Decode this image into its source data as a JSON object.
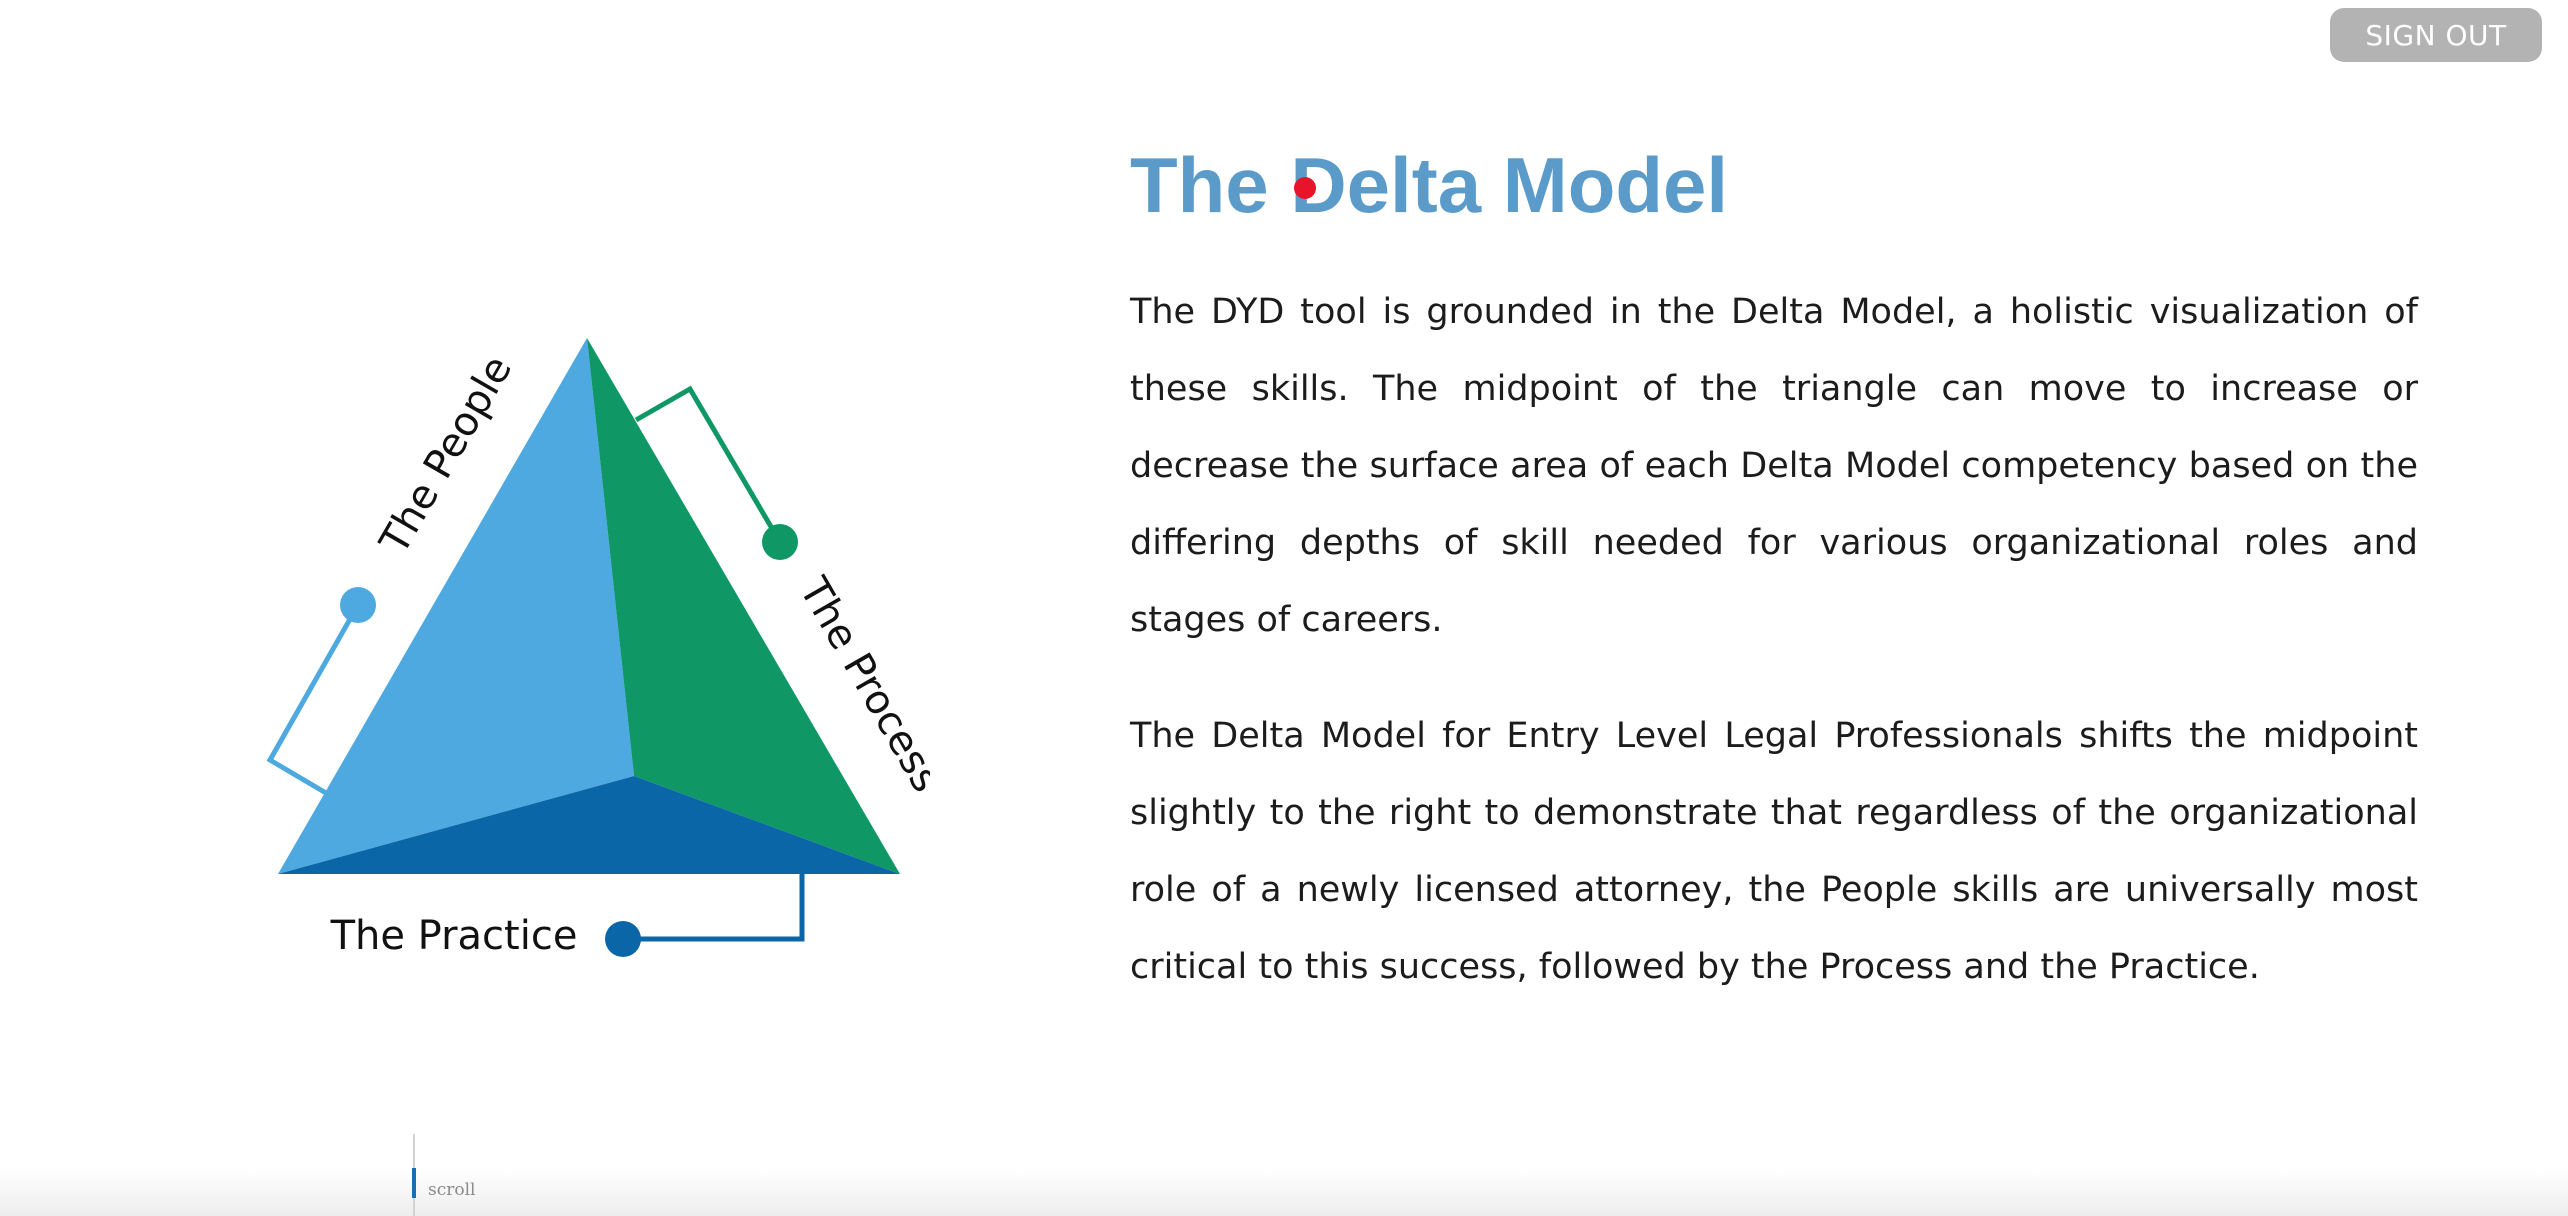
{
  "header": {
    "signout_label": "SIGN OUT"
  },
  "diagram": {
    "labels": {
      "people": "The People",
      "process": "The Process",
      "practice": "The Practice"
    },
    "colors": {
      "people": "#4da9df",
      "process": "#0f9866",
      "practice": "#0b66a7"
    }
  },
  "content": {
    "title": "The Delta Model",
    "paragraph1": "The DYD tool is grounded in the Delta Model, a holistic visualization of these skills. The midpoint of the triangle can move to increase or decrease the surface area of each Delta Model competency based on the differing depths of skill needed for various organizational roles and stages of careers.",
    "paragraph2": "The Delta Model for Entry Level Legal Professionals shifts the midpoint slightly to the right to demonstrate that regardless of the organizational role of a newly licensed attorney, the People skills are universally most critical to this success, followed by the Process and the Practice."
  },
  "scroll": {
    "label": "scroll"
  }
}
